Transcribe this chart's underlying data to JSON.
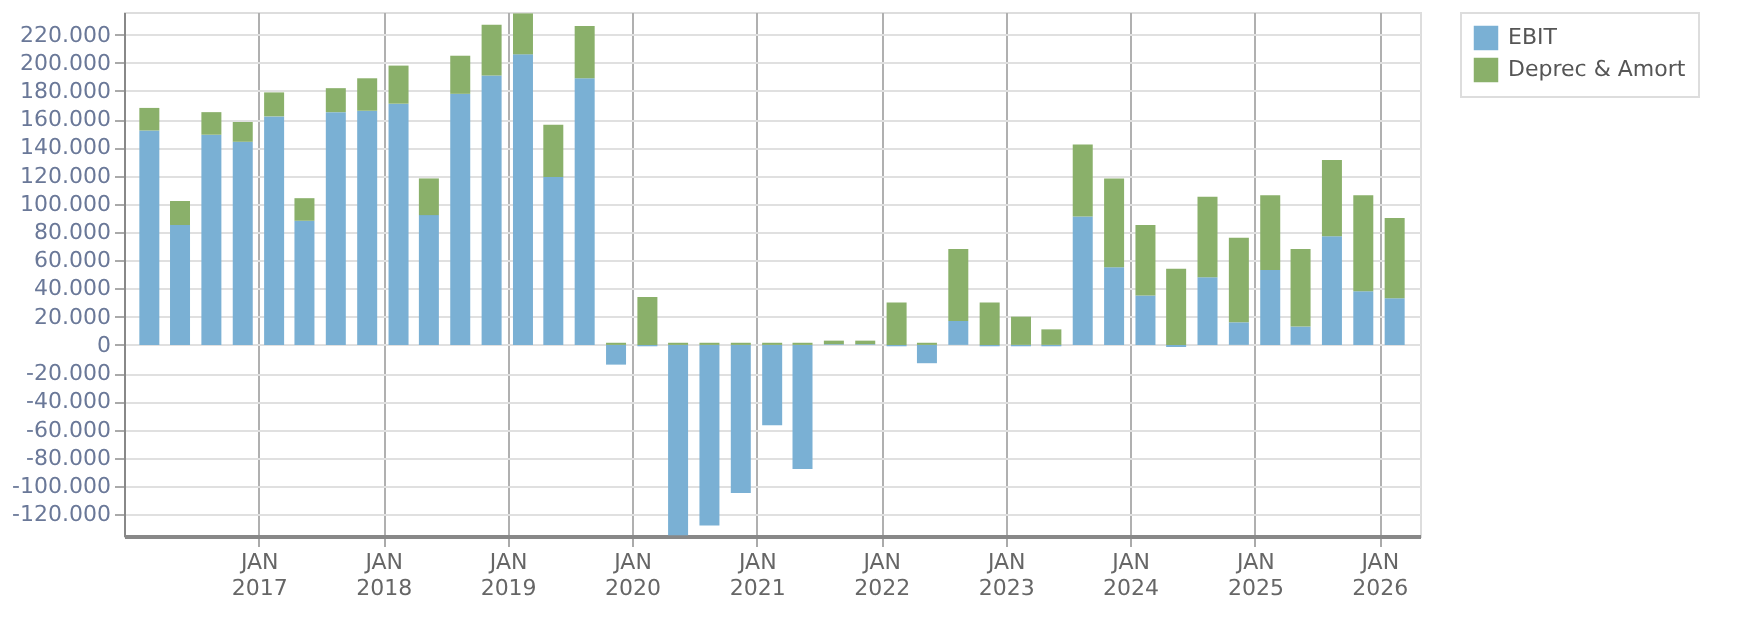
{
  "chart_data": {
    "type": "bar",
    "stacked": true,
    "grid": true,
    "legend": "top right",
    "x": [
      "2016-02-15",
      "2016-05-15",
      "2016-08-15",
      "2016-11-15",
      "2017-02-15",
      "2017-05-15",
      "2017-08-15",
      "2017-11-15",
      "2018-02-15",
      "2018-05-15",
      "2018-08-15",
      "2018-11-15",
      "2019-02-15",
      "2019-05-15",
      "2019-08-15",
      "2019-11-15",
      "2020-02-15",
      "2020-05-15",
      "2020-08-15",
      "2020-11-15",
      "2021-02-15",
      "2021-05-15",
      "2021-08-15",
      "2021-11-15",
      "2022-02-15",
      "2022-05-15",
      "2022-08-15",
      "2022-11-15",
      "2023-02-15",
      "2023-05-15",
      "2023-08-15",
      "2023-11-15",
      "2024-02-15",
      "2024-05-15",
      "2024-08-15",
      "2024-11-15",
      "2025-02-15",
      "2025-05-15",
      "2025-08-15",
      "2025-11-15",
      "2026-02-15"
    ],
    "series": [
      {
        "name": "EBIT",
        "color": "#7ab0d4",
        "values": [
          152000,
          85000,
          149000,
          144000,
          162000,
          88000,
          165000,
          166000,
          171000,
          92000,
          178000,
          191000,
          206000,
          119000,
          189000,
          -14000,
          -1000,
          -135000,
          -128000,
          -105000,
          -57000,
          -88000,
          500,
          500,
          -1000,
          -13000,
          17000,
          -1000,
          -1000,
          -1000,
          91000,
          55000,
          35000,
          -1500,
          48000,
          16000,
          53000,
          13000,
          77000,
          38000,
          33000
        ]
      },
      {
        "name": "Deprec & Amort",
        "color": "#8ab06a",
        "values": [
          16000,
          17000,
          16000,
          14000,
          17000,
          16000,
          17000,
          23000,
          27000,
          26000,
          27000,
          36000,
          29000,
          37000,
          37000,
          1500,
          34000,
          1500,
          1500,
          1500,
          1500,
          1500,
          2500,
          2500,
          30000,
          1500,
          51000,
          30000,
          20000,
          11000,
          51000,
          63000,
          50000,
          54000,
          57000,
          60000,
          53000,
          55000,
          54000,
          68000,
          57000
        ]
      }
    ],
    "xlim": [
      "2016-01-01",
      "2026-04-01"
    ],
    "xticks": [
      {
        "value": "2017-01-01",
        "label": "JAN 2017"
      },
      {
        "value": "2018-01-01",
        "label": "JAN 2018"
      },
      {
        "value": "2019-01-01",
        "label": "JAN 2019"
      },
      {
        "value": "2020-01-01",
        "label": "JAN 2020"
      },
      {
        "value": "2021-01-01",
        "label": "JAN 2021"
      },
      {
        "value": "2022-01-01",
        "label": "JAN 2022"
      },
      {
        "value": "2023-01-01",
        "label": "JAN 2023"
      },
      {
        "value": "2024-01-01",
        "label": "JAN 2024"
      },
      {
        "value": "2025-01-01",
        "label": "JAN 2025"
      },
      {
        "value": "2026-01-01",
        "label": "JAN 2026"
      }
    ],
    "ylim": [
      -135500,
      236000
    ],
    "yticks": [
      {
        "value": -120000,
        "label": "-120.000"
      },
      {
        "value": -100000,
        "label": "-100.000"
      },
      {
        "value": -80000,
        "label": "-80.000"
      },
      {
        "value": -60000,
        "label": "-60.000"
      },
      {
        "value": -40000,
        "label": "-40.000"
      },
      {
        "value": -20000,
        "label": "-20.000"
      },
      {
        "value": 0,
        "label": "0"
      },
      {
        "value": 20000,
        "label": "20.000"
      },
      {
        "value": 40000,
        "label": "40.000"
      },
      {
        "value": 60000,
        "label": "60.000"
      },
      {
        "value": 80000,
        "label": "80.000"
      },
      {
        "value": 100000,
        "label": "100.000"
      },
      {
        "value": 120000,
        "label": "120.000"
      },
      {
        "value": 140000,
        "label": "140.000"
      },
      {
        "value": 160000,
        "label": "160.000"
      },
      {
        "value": 180000,
        "label": "180.000"
      },
      {
        "value": 200000,
        "label": "200.000"
      },
      {
        "value": 220000,
        "label": "220.000"
      }
    ]
  }
}
